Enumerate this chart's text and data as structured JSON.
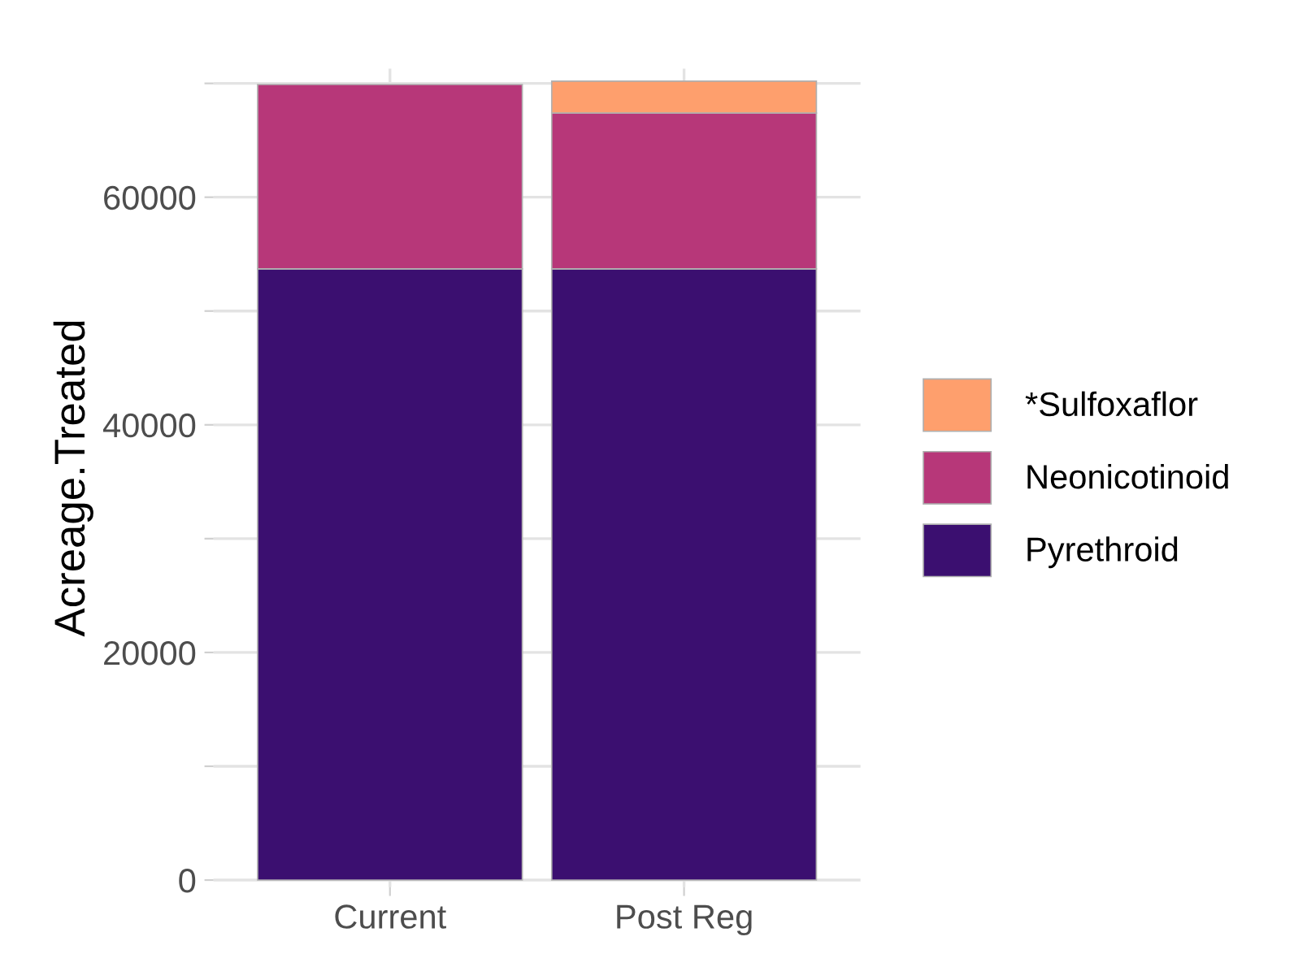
{
  "chart_data": {
    "type": "bar",
    "stacked": true,
    "ylabel": "Acreage.Treated",
    "categories": [
      "Current",
      "Post Reg"
    ],
    "series": [
      {
        "name": "Pyrethroid",
        "color": "#3b0f70",
        "values": [
          53700,
          53700
        ]
      },
      {
        "name": "Neonicotinoid",
        "color": "#b73779",
        "values": [
          16200,
          13700
        ]
      },
      {
        "name": "*Sulfoxaflor",
        "color": "#fe9f6d",
        "values": [
          null,
          2800
        ]
      }
    ],
    "ylim": [
      -600,
      71300
    ],
    "yticks": [
      0,
      {
        "value": 10000,
        "label": null
      },
      20000,
      {
        "value": 30000,
        "label": null
      },
      40000,
      {
        "value": 50000,
        "label": null
      },
      60000,
      {
        "value": 70000,
        "label": null
      }
    ],
    "grid": true,
    "legend": "right"
  }
}
